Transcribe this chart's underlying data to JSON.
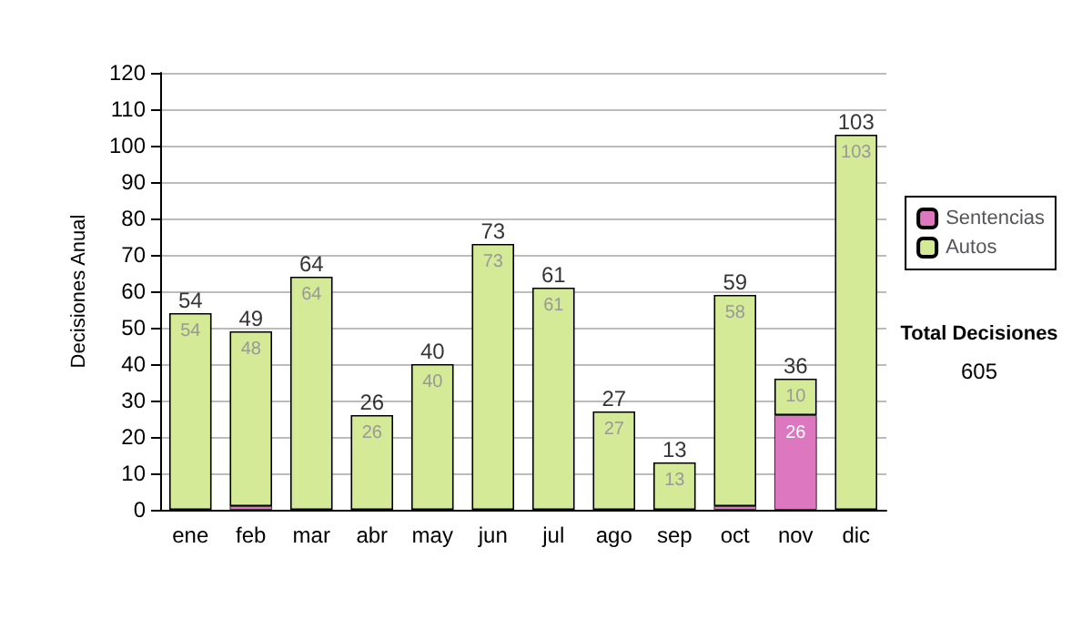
{
  "chart_data": {
    "type": "bar",
    "stacked": true,
    "ylabel": "Decisiones Anual",
    "categories": [
      "ene",
      "feb",
      "mar",
      "abr",
      "may",
      "jun",
      "jul",
      "ago",
      "sep",
      "oct",
      "nov",
      "dic"
    ],
    "series": [
      {
        "name": "Sentencias",
        "color": "#dd77c0",
        "values": [
          0,
          1,
          0,
          0,
          0,
          0,
          0,
          0,
          0,
          1,
          26,
          0
        ],
        "value_labels": [
          null,
          null,
          null,
          null,
          null,
          null,
          null,
          null,
          null,
          null,
          "26",
          null
        ]
      },
      {
        "name": "Autos",
        "color": "#d4ea96",
        "values": [
          54,
          48,
          64,
          26,
          40,
          73,
          61,
          27,
          13,
          58,
          10,
          103
        ],
        "value_labels": [
          "54",
          "48",
          "64",
          "26",
          "40",
          "73",
          "61",
          "27",
          "13",
          "58",
          "10",
          "103"
        ]
      }
    ],
    "totals": [
      "54",
      "49",
      "64",
      "26",
      "40",
      "73",
      "61",
      "27",
      "13",
      "59",
      "36",
      "103"
    ],
    "ylim": [
      0,
      120
    ],
    "yticks": [
      0,
      10,
      20,
      30,
      40,
      50,
      60,
      70,
      80,
      90,
      100,
      110,
      120
    ],
    "grid": "y",
    "legend": "right",
    "annotations": [
      "Total Decisiones",
      "605"
    ]
  }
}
